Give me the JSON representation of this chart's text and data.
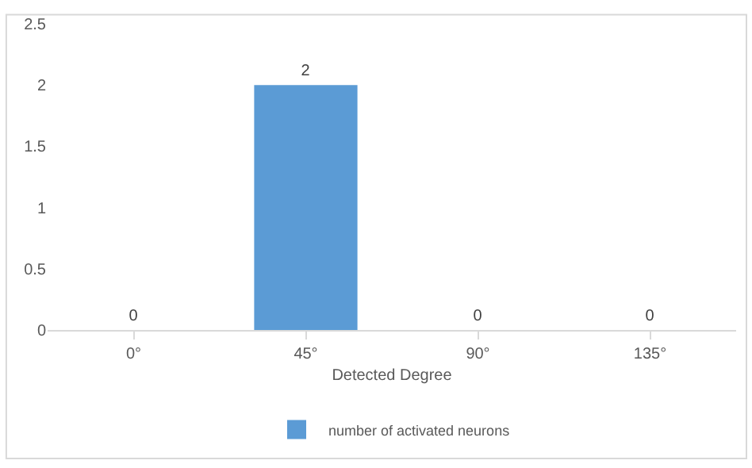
{
  "chart_data": {
    "type": "bar",
    "xlabel": "Detected Degree",
    "categories": [
      "0°",
      "45°",
      "90°",
      "135°"
    ],
    "series": [
      {
        "name": "number of activated neurons",
        "color": "#5b9bd5",
        "values": [
          0,
          2,
          0,
          0
        ]
      }
    ],
    "ylim": [
      0,
      2.5
    ],
    "yticks": [
      0,
      0.5,
      1,
      1.5,
      2,
      2.5
    ],
    "data_labels": true,
    "grid": false,
    "legend": "bottom"
  }
}
